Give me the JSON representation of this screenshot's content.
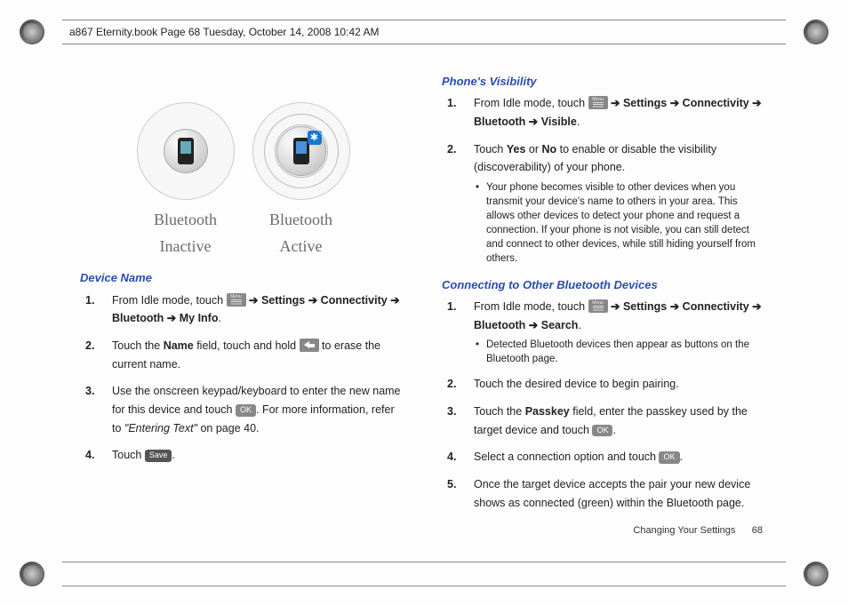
{
  "header": "a867 Eternity.book  Page 68  Tuesday, October 14, 2008  10:42 AM",
  "figure": {
    "inactive_label": "Bluetooth\nInactive",
    "active_label": "Bluetooth\nActive"
  },
  "left": {
    "section1_title": "Device Name",
    "step1_pre": "From Idle mode, touch ",
    "step1_path": " ➔ Settings ➔ Connectivity ➔ Bluetooth ➔ My Info",
    "step2a": "Touch the ",
    "step2b": "Name",
    "step2c": " field, touch and hold ",
    "step2d": " to erase the current name.",
    "step3a": "Use the onscreen keypad/keyboard to enter the new name for this device and touch ",
    "step3_ok": "OK",
    "step3b": ". For more information, refer to ",
    "step3_ref": "\"Entering Text\"",
    "step3c": " on page 40.",
    "step4a": "Touch ",
    "step4_save": "Save",
    "step4b": "."
  },
  "right": {
    "section1_title": "Phone's Visibility",
    "v1_pre": "From Idle mode, touch ",
    "v1_path": " ➔ Settings ➔ Connectivity ➔ Bluetooth ➔ Visible",
    "v2a": "Touch ",
    "v2_yes": "Yes",
    "v2b": " or ",
    "v2_no": "No",
    "v2c": " to enable or disable the visibility (discoverability) of your phone.",
    "v2_bullet": "Your phone becomes visible to other devices when you transmit your device's name to others in your area. This allows other devices to detect your phone and request a connection. If your phone is not visible, you can still detect and connect to other devices, while still hiding yourself from others.",
    "section2_title": "Connecting to Other Bluetooth Devices",
    "c1_pre": "From Idle mode, touch ",
    "c1_path": " ➔ Settings ➔ Connectivity ➔ Bluetooth ➔ Search",
    "c1_bullet": "Detected Bluetooth devices then appear as buttons on the Bluetooth page.",
    "c2": "Touch the desired device to begin pairing.",
    "c3a": "Touch the ",
    "c3b": "Passkey",
    "c3c": " field, enter the passkey used by the target device and touch ",
    "c3_ok": "OK",
    "c3d": ".",
    "c4a": "Select a connection option and touch ",
    "c4_ok": "OK",
    "c4b": ".",
    "c5": "Once the target device accepts the pair your new device shows as connected (green) within the Bluetooth page."
  },
  "footer_label": "Changing Your Settings",
  "footer_page": "68"
}
